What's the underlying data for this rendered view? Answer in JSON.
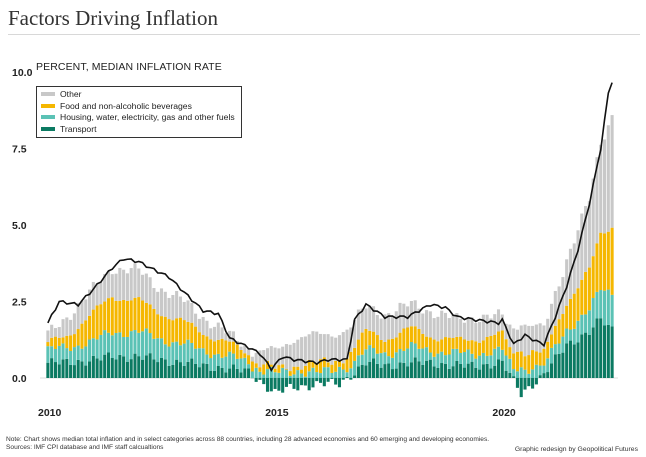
{
  "header": {
    "title": "Factors Driving Inflation",
    "subtitle": "PERCENT, MEDIAN INFLATION RATE"
  },
  "footer": {
    "note": "Note: Chart shows median total inflation and in select categories across 88 countries, including 28 advanced economies and 60 emerging and developing economies.",
    "sources": "Sources: IMF CPI database and IMF staff calcualtions",
    "credit": "Graphic redesign by Geopolitical Futures"
  },
  "colors": {
    "other": "#c8c8c8",
    "food": "#f5b700",
    "housing": "#5bc2b5",
    "transport": "#0b7a62",
    "total_line": "#111111"
  },
  "chart_data": {
    "type": "bar",
    "stacked": true,
    "title": "Factors Driving Inflation",
    "ylabel": "PERCENT, MEDIAN INFLATION RATE",
    "ylim": [
      0,
      10
    ],
    "yticks": [
      0.0,
      2.5,
      5.0,
      7.5,
      10.0
    ],
    "ytick_labels": [
      "0.0",
      "2.5",
      "5.0",
      "7.5",
      "10.0"
    ],
    "xticks": [
      "2010",
      "2015",
      "2020"
    ],
    "x_start": "2010-01",
    "x_end": "2022-06",
    "frequency": "monthly",
    "legend_position": "top-left",
    "grid": false,
    "series": [
      {
        "name": "Other",
        "key": "other",
        "kind": "bar",
        "anchors": [
          [
            "2010-01",
            0.3
          ],
          [
            "2010-06",
            0.6
          ],
          [
            "2011-01",
            0.8
          ],
          [
            "2011-06",
            0.9
          ],
          [
            "2012-01",
            1.0
          ],
          [
            "2012-06",
            0.8
          ],
          [
            "2013-01",
            0.7
          ],
          [
            "2013-06",
            0.5
          ],
          [
            "2014-01",
            0.3
          ],
          [
            "2014-06",
            0.2
          ],
          [
            "2015-01",
            0.6
          ],
          [
            "2015-06",
            0.9
          ],
          [
            "2016-01",
            0.9
          ],
          [
            "2016-06",
            0.9
          ],
          [
            "2017-01",
            0.8
          ],
          [
            "2017-06",
            0.8
          ],
          [
            "2018-01",
            0.8
          ],
          [
            "2018-06",
            0.8
          ],
          [
            "2019-01",
            0.7
          ],
          [
            "2019-06",
            0.7
          ],
          [
            "2020-01",
            0.6
          ],
          [
            "2020-06",
            0.9
          ],
          [
            "2020-12",
            0.8
          ],
          [
            "2021-06",
            1.4
          ],
          [
            "2021-12",
            2.3
          ],
          [
            "2022-03",
            3.0
          ],
          [
            "2022-06",
            3.6
          ]
        ]
      },
      {
        "name": "Food and non-alcoholic beverages",
        "key": "food",
        "kind": "bar",
        "anchors": [
          [
            "2010-01",
            0.2
          ],
          [
            "2010-06",
            0.4
          ],
          [
            "2011-01",
            0.9
          ],
          [
            "2011-06",
            1.2
          ],
          [
            "2012-01",
            1.0
          ],
          [
            "2012-06",
            0.9
          ],
          [
            "2013-01",
            0.7
          ],
          [
            "2013-06",
            0.6
          ],
          [
            "2014-01",
            0.4
          ],
          [
            "2014-06",
            0.3
          ],
          [
            "2015-01",
            0.1
          ],
          [
            "2015-06",
            0.2
          ],
          [
            "2016-01",
            0.3
          ],
          [
            "2016-06",
            0.3
          ],
          [
            "2017-01",
            0.6
          ],
          [
            "2017-06",
            0.5
          ],
          [
            "2018-01",
            0.6
          ],
          [
            "2018-06",
            0.5
          ],
          [
            "2019-01",
            0.4
          ],
          [
            "2019-06",
            0.5
          ],
          [
            "2020-01",
            0.5
          ],
          [
            "2020-06",
            0.6
          ],
          [
            "2020-12",
            0.4
          ],
          [
            "2021-06",
            0.9
          ],
          [
            "2021-12",
            1.3
          ],
          [
            "2022-03",
            1.8
          ],
          [
            "2022-06",
            2.2
          ]
        ]
      },
      {
        "name": "Housing, water, electricity, gas and other fuels",
        "key": "housing",
        "kind": "bar",
        "anchors": [
          [
            "2010-01",
            0.4
          ],
          [
            "2010-06",
            0.5
          ],
          [
            "2011-01",
            0.6
          ],
          [
            "2011-06",
            0.8
          ],
          [
            "2012-01",
            0.8
          ],
          [
            "2012-06",
            0.7
          ],
          [
            "2013-01",
            0.6
          ],
          [
            "2013-06",
            0.5
          ],
          [
            "2014-01",
            0.4
          ],
          [
            "2014-06",
            0.3
          ],
          [
            "2015-01",
            0.2
          ],
          [
            "2015-06",
            0.2
          ],
          [
            "2016-01",
            0.2
          ],
          [
            "2016-06",
            0.3
          ],
          [
            "2017-01",
            0.4
          ],
          [
            "2017-06",
            0.4
          ],
          [
            "2018-01",
            0.5
          ],
          [
            "2018-06",
            0.4
          ],
          [
            "2019-01",
            0.4
          ],
          [
            "2019-06",
            0.4
          ],
          [
            "2020-01",
            0.4
          ],
          [
            "2020-06",
            0.3
          ],
          [
            "2020-12",
            0.3
          ],
          [
            "2021-06",
            0.5
          ],
          [
            "2021-12",
            0.7
          ],
          [
            "2022-03",
            1.0
          ],
          [
            "2022-06",
            1.2
          ]
        ]
      },
      {
        "name": "Transport",
        "key": "transport",
        "kind": "bar",
        "anchors": [
          [
            "2010-01",
            0.5
          ],
          [
            "2010-06",
            0.5
          ],
          [
            "2011-01",
            0.6
          ],
          [
            "2011-06",
            0.7
          ],
          [
            "2012-01",
            0.7
          ],
          [
            "2012-06",
            0.6
          ],
          [
            "2013-01",
            0.5
          ],
          [
            "2013-06",
            0.4
          ],
          [
            "2014-01",
            0.3
          ],
          [
            "2014-06",
            0.2
          ],
          [
            "2015-01",
            -0.5
          ],
          [
            "2015-06",
            -0.3
          ],
          [
            "2016-01",
            -0.2
          ],
          [
            "2016-06",
            -0.2
          ],
          [
            "2017-01",
            0.5
          ],
          [
            "2017-06",
            0.4
          ],
          [
            "2018-01",
            0.5
          ],
          [
            "2018-06",
            0.5
          ],
          [
            "2019-01",
            0.4
          ],
          [
            "2019-06",
            0.4
          ],
          [
            "2020-01",
            0.5
          ],
          [
            "2020-06",
            -0.5
          ],
          [
            "2020-12",
            0.1
          ],
          [
            "2021-06",
            1.1
          ],
          [
            "2021-12",
            1.5
          ],
          [
            "2022-03",
            1.9
          ],
          [
            "2022-06",
            1.6
          ]
        ]
      },
      {
        "name": "Total",
        "key": "total_line",
        "kind": "line",
        "anchors": [
          [
            "2010-01",
            1.8
          ],
          [
            "2010-04",
            2.5
          ],
          [
            "2010-09",
            2.4
          ],
          [
            "2011-01",
            2.9
          ],
          [
            "2011-06",
            3.6
          ],
          [
            "2011-09",
            3.9
          ],
          [
            "2012-01",
            3.8
          ],
          [
            "2012-04",
            3.6
          ],
          [
            "2012-09",
            3.3
          ],
          [
            "2013-01",
            2.8
          ],
          [
            "2013-06",
            2.2
          ],
          [
            "2013-10",
            2.1
          ],
          [
            "2014-01",
            1.3
          ],
          [
            "2014-06",
            1.0
          ],
          [
            "2014-09",
            0.8
          ],
          [
            "2014-12",
            0.3
          ],
          [
            "2015-03",
            0.7
          ],
          [
            "2015-06",
            0.6
          ],
          [
            "2015-12",
            0.5
          ],
          [
            "2016-03",
            0.6
          ],
          [
            "2016-08",
            0.6
          ],
          [
            "2016-10",
            1.9
          ],
          [
            "2017-01",
            2.4
          ],
          [
            "2017-06",
            2.0
          ],
          [
            "2017-12",
            2.0
          ],
          [
            "2018-06",
            2.4
          ],
          [
            "2018-10",
            2.3
          ],
          [
            "2019-01",
            2.0
          ],
          [
            "2019-06",
            1.9
          ],
          [
            "2019-12",
            1.8
          ],
          [
            "2020-01",
            1.9
          ],
          [
            "2020-04",
            1.1
          ],
          [
            "2020-07",
            1.4
          ],
          [
            "2020-10",
            1.2
          ],
          [
            "2020-12",
            1.1
          ],
          [
            "2021-03",
            2.0
          ],
          [
            "2021-06",
            3.0
          ],
          [
            "2021-09",
            4.2
          ],
          [
            "2021-12",
            5.7
          ],
          [
            "2022-03",
            7.5
          ],
          [
            "2022-05",
            9.3
          ],
          [
            "2022-06",
            9.7
          ]
        ]
      }
    ]
  }
}
